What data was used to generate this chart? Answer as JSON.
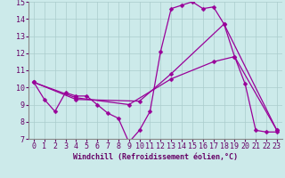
{
  "bg_color": "#cceaea",
  "line_color": "#990099",
  "grid_color": "#aacccc",
  "xlabel": "Windchill (Refroidissement éolien,°C)",
  "xlim": [
    -0.5,
    23.5
  ],
  "ylim": [
    7,
    15
  ],
  "yticks": [
    7,
    8,
    9,
    10,
    11,
    12,
    13,
    14,
    15
  ],
  "xticks": [
    0,
    1,
    2,
    3,
    4,
    5,
    6,
    7,
    8,
    9,
    10,
    11,
    12,
    13,
    14,
    15,
    16,
    17,
    18,
    19,
    20,
    21,
    22,
    23
  ],
  "line1_x": [
    0,
    1,
    2,
    3,
    4,
    5,
    6,
    7,
    8,
    9,
    10,
    11,
    12,
    13,
    14,
    15,
    16,
    17,
    18,
    19,
    20,
    21,
    22,
    23
  ],
  "line1_y": [
    10.3,
    9.3,
    8.6,
    9.7,
    9.5,
    9.5,
    9.0,
    8.5,
    8.2,
    6.8,
    7.5,
    8.6,
    12.1,
    14.6,
    14.8,
    15.0,
    14.6,
    14.7,
    13.7,
    11.8,
    10.2,
    7.5,
    7.4,
    7.4
  ],
  "line2_x": [
    0,
    4,
    9,
    13,
    17,
    19,
    23
  ],
  "line2_y": [
    10.3,
    9.4,
    9.0,
    10.5,
    11.5,
    11.8,
    7.5
  ],
  "line3_x": [
    0,
    4,
    10,
    13,
    18,
    23
  ],
  "line3_y": [
    10.3,
    9.3,
    9.2,
    10.8,
    13.7,
    7.5
  ],
  "markersize": 2.5,
  "linewidth": 0.9,
  "xlabel_fontsize": 6,
  "tick_fontsize": 6,
  "font_family": "monospace"
}
